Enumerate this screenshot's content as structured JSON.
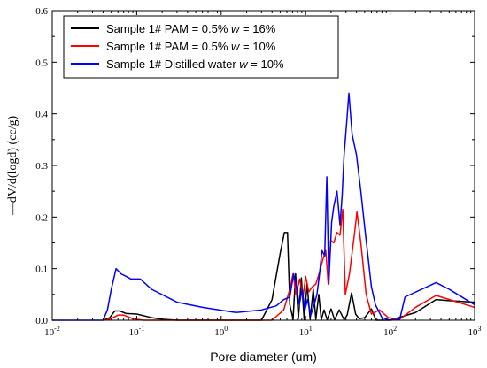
{
  "chart_data": {
    "type": "line",
    "xlabel": "Pore diameter (um)",
    "ylabel": "—dV/d(logd) (cc/g)",
    "xscale": "log",
    "xlim": [
      0.01,
      1000
    ],
    "ylim": [
      0,
      0.6
    ],
    "xticks": [
      0.01,
      0.1,
      1,
      10,
      100,
      1000
    ],
    "xtick_labels": [
      {
        "base": "10",
        "exp": "-2"
      },
      {
        "base": "10",
        "exp": "-1"
      },
      {
        "base": "10",
        "exp": "0"
      },
      {
        "base": "10",
        "exp": "1"
      },
      {
        "base": "10",
        "exp": "2"
      },
      {
        "base": "10",
        "exp": "3"
      }
    ],
    "yticks": [
      0.0,
      0.1,
      0.2,
      0.3,
      0.4,
      0.5,
      0.6
    ],
    "ytick_labels": [
      "0.0",
      "0.1",
      "0.2",
      "0.3",
      "0.4",
      "0.5",
      "0.6"
    ],
    "grid": false,
    "legend_position": "top-left",
    "series": [
      {
        "name": "Sample 1# PAM = 0.5% w = 16%",
        "legend_parts": [
          {
            "text": "Sample 1# PAM = 0.5% ",
            "italic": false
          },
          {
            "text": "w",
            "italic": true
          },
          {
            "text": " = 16%",
            "italic": false
          }
        ],
        "color": "#000000",
        "points": [
          [
            0.04,
            0.0
          ],
          [
            0.048,
            0.005
          ],
          [
            0.055,
            0.018
          ],
          [
            0.063,
            0.018
          ],
          [
            0.075,
            0.013
          ],
          [
            0.1,
            0.012
          ],
          [
            0.15,
            0.005
          ],
          [
            0.2,
            0.002
          ],
          [
            0.3,
            0.0
          ],
          [
            1,
            0.0
          ],
          [
            3,
            0.0
          ],
          [
            4,
            0.04
          ],
          [
            5,
            0.13
          ],
          [
            5.6,
            0.17
          ],
          [
            6.1,
            0.17
          ],
          [
            6.5,
            0.03
          ],
          [
            7.1,
            0.002
          ],
          [
            7.6,
            0.09
          ],
          [
            8.2,
            0.003
          ],
          [
            8.9,
            0.082
          ],
          [
            9.6,
            0.002
          ],
          [
            10.4,
            0.07
          ],
          [
            11.3,
            0.002
          ],
          [
            12.3,
            0.06
          ],
          [
            13.2,
            0.002
          ],
          [
            14.3,
            0.05
          ],
          [
            15.3,
            0.001
          ],
          [
            16.5,
            0.02
          ],
          [
            18,
            0.001
          ],
          [
            20,
            0.022
          ],
          [
            22,
            0.001
          ],
          [
            25,
            0.02
          ],
          [
            28.5,
            0.001
          ],
          [
            31,
            0.01
          ],
          [
            35,
            0.053
          ],
          [
            39,
            0.012
          ],
          [
            43,
            0.003
          ],
          [
            50,
            0.005
          ],
          [
            60,
            0.022
          ],
          [
            68,
            0.0
          ],
          [
            100,
            0.0
          ],
          [
            200,
            0.015
          ],
          [
            350,
            0.04
          ],
          [
            500,
            0.038
          ],
          [
            1000,
            0.035
          ]
        ]
      },
      {
        "name": "Sample 1# PAM = 0.5% w = 10%",
        "legend_parts": [
          {
            "text": "Sample 1# PAM = 0.5% ",
            "italic": false
          },
          {
            "text": "w",
            "italic": true
          },
          {
            "text": " = 10%",
            "italic": false
          }
        ],
        "color": "#ff0000",
        "points": [
          [
            0.04,
            0.0
          ],
          [
            0.05,
            0.003
          ],
          [
            0.06,
            0.01
          ],
          [
            0.07,
            0.01
          ],
          [
            0.09,
            0.003
          ],
          [
            0.12,
            0.0
          ],
          [
            1,
            0.0
          ],
          [
            4,
            0.0
          ],
          [
            5.5,
            0.02
          ],
          [
            6.5,
            0.06
          ],
          [
            7.1,
            0.09
          ],
          [
            7.7,
            0.05
          ],
          [
            8.5,
            0.08
          ],
          [
            9.3,
            0.045
          ],
          [
            10,
            0.085
          ],
          [
            10.9,
            0.055
          ],
          [
            12,
            0.065
          ],
          [
            13.2,
            0.07
          ],
          [
            14.4,
            0.09
          ],
          [
            15.8,
            0.115
          ],
          [
            17.3,
            0.135
          ],
          [
            18.5,
            0.07
          ],
          [
            19.8,
            0.155
          ],
          [
            21.5,
            0.15
          ],
          [
            23.5,
            0.17
          ],
          [
            25.5,
            0.165
          ],
          [
            27.5,
            0.215
          ],
          [
            29.5,
            0.05
          ],
          [
            33,
            0.09
          ],
          [
            38,
            0.17
          ],
          [
            40.5,
            0.21
          ],
          [
            45,
            0.15
          ],
          [
            52,
            0.05
          ],
          [
            60,
            0.012
          ],
          [
            75,
            0.02
          ],
          [
            95,
            0.005
          ],
          [
            130,
            0.002
          ],
          [
            200,
            0.025
          ],
          [
            350,
            0.048
          ],
          [
            1000,
            0.025
          ]
        ]
      },
      {
        "name": "Sample 1# Distilled water w = 10%",
        "legend_parts": [
          {
            "text": "Sample 1# Distilled water ",
            "italic": false
          },
          {
            "text": "w",
            "italic": true
          },
          {
            "text": " = 10%",
            "italic": false
          }
        ],
        "color": "#0000ff",
        "points": [
          [
            0.01,
            0.0
          ],
          [
            0.04,
            0.0
          ],
          [
            0.045,
            0.02
          ],
          [
            0.05,
            0.06
          ],
          [
            0.057,
            0.1
          ],
          [
            0.065,
            0.09
          ],
          [
            0.075,
            0.085
          ],
          [
            0.085,
            0.08
          ],
          [
            0.11,
            0.08
          ],
          [
            0.15,
            0.06
          ],
          [
            0.3,
            0.035
          ],
          [
            0.6,
            0.025
          ],
          [
            1.5,
            0.015
          ],
          [
            3,
            0.02
          ],
          [
            4.5,
            0.028
          ],
          [
            5.5,
            0.04
          ],
          [
            6.5,
            0.045
          ],
          [
            7.2,
            0.09
          ],
          [
            7.8,
            0.065
          ],
          [
            8.4,
            0.03
          ],
          [
            9.1,
            0.06
          ],
          [
            9.8,
            0.02
          ],
          [
            10.5,
            0.04
          ],
          [
            11.5,
            0.01
          ],
          [
            12.6,
            0.03
          ],
          [
            13.6,
            0.05
          ],
          [
            14.6,
            0.09
          ],
          [
            15.6,
            0.135
          ],
          [
            16.8,
            0.125
          ],
          [
            17.8,
            0.278
          ],
          [
            18.8,
            0.07
          ],
          [
            20.3,
            0.19
          ],
          [
            21.5,
            0.22
          ],
          [
            23.5,
            0.25
          ],
          [
            25.5,
            0.185
          ],
          [
            27,
            0.24
          ],
          [
            28.5,
            0.32
          ],
          [
            30.5,
            0.38
          ],
          [
            32.5,
            0.44
          ],
          [
            35.5,
            0.36
          ],
          [
            40,
            0.32
          ],
          [
            45,
            0.25
          ],
          [
            50,
            0.18
          ],
          [
            55,
            0.12
          ],
          [
            60,
            0.065
          ],
          [
            67,
            0.03
          ],
          [
            80,
            0.005
          ],
          [
            100,
            0.0
          ],
          [
            130,
            0.002
          ],
          [
            150,
            0.045
          ],
          [
            350,
            0.073
          ],
          [
            500,
            0.06
          ],
          [
            1000,
            0.03
          ]
        ]
      }
    ]
  }
}
